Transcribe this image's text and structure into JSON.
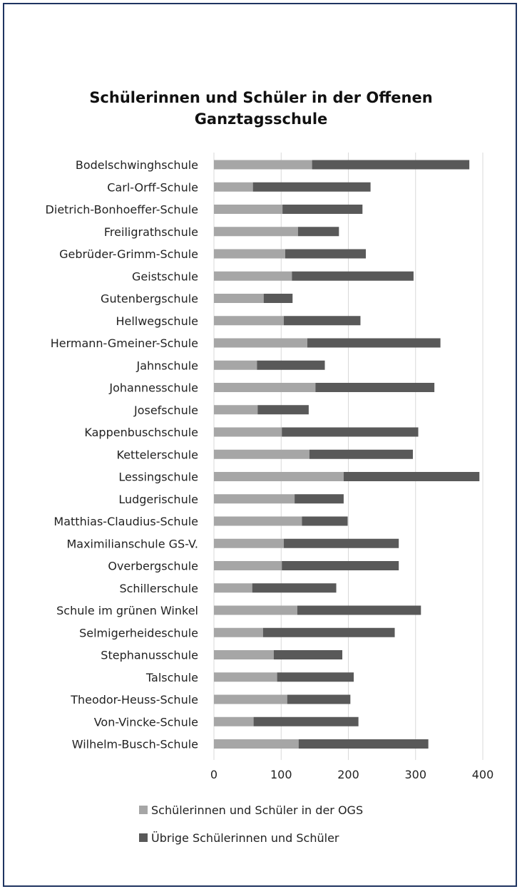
{
  "chart_data": {
    "type": "bar",
    "orientation": "horizontal",
    "stacked": true,
    "title": "Schülerinnen und Schüler in der Offenen Ganztagsschule",
    "categories": [
      "Bodelschwinghschule",
      "Carl-Orff-Schule",
      "Dietrich-Bonhoeffer-Schule",
      "Freiligrathschule",
      "Gebrüder-Grimm-Schule",
      "Geistschule",
      "Gutenbergschule",
      "Hellwegschule",
      "Hermann-Gmeiner-Schule",
      "Jahnschule",
      "Johannesschule",
      "Josefschule",
      "Kappenbuschschule",
      "Kettelerschule",
      "Lessingschule",
      "Ludgerischule",
      "Matthias-Claudius-Schule",
      "Maximilianschule GS-V.",
      "Overbergschule",
      "Schillerschule",
      "Schule im grünen Winkel",
      "Selmigerheideschule",
      "Stephanusschule",
      "Talschule",
      "Theodor-Heuss-Schule",
      "Von-Vincke-Schule",
      "Wilhelm-Busch-Schule"
    ],
    "series": [
      {
        "name": "Schülerinnen und Schüler in der OGS",
        "color": "#a6a6a6",
        "values": [
          146,
          58,
          102,
          125,
          106,
          116,
          74,
          104,
          139,
          64,
          151,
          65,
          101,
          142,
          193,
          120,
          131,
          104,
          101,
          57,
          124,
          73,
          89,
          94,
          109,
          59,
          126
        ]
      },
      {
        "name": "Übrige Schülerinnen und Schüler",
        "color": "#595959",
        "values": [
          234,
          175,
          119,
          61,
          120,
          181,
          43,
          114,
          198,
          101,
          177,
          76,
          203,
          154,
          202,
          73,
          68,
          171,
          174,
          125,
          184,
          196,
          102,
          114,
          94,
          156,
          193
        ]
      }
    ],
    "xlim": [
      0,
      400
    ],
    "xticks": [
      0,
      100,
      200,
      300,
      400
    ],
    "grid": true,
    "legend": "bottom"
  }
}
